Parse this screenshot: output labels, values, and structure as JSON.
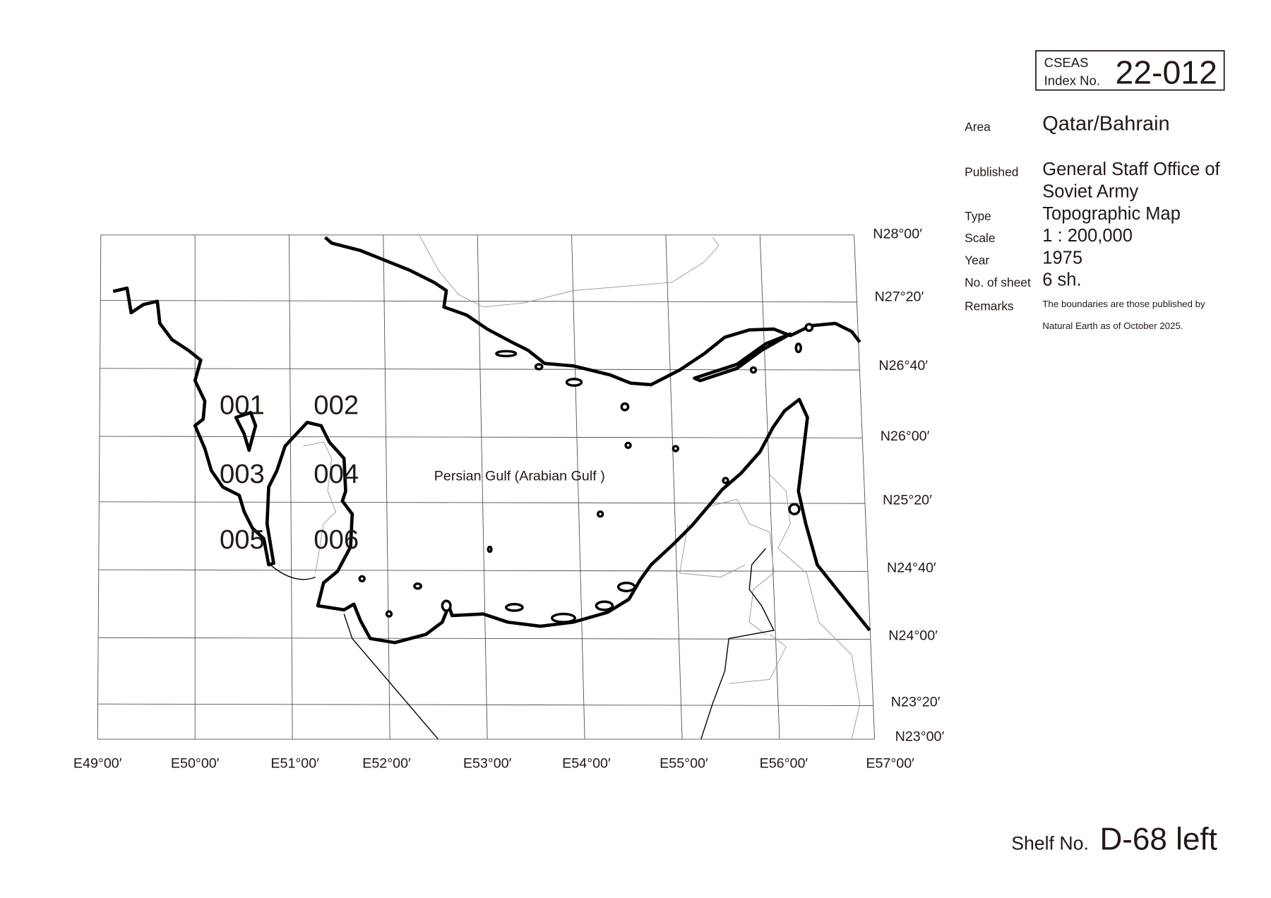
{
  "header": {
    "index_label": [
      "CSEAS",
      "Index No."
    ],
    "index_number": "22-012"
  },
  "fields": [
    {
      "label": "Area",
      "lines": [
        "Qatar/Bahrain"
      ]
    },
    {
      "label": "Published",
      "lines": [
        "General Staff Office of",
        "Soviet Army"
      ]
    },
    {
      "label": "Type",
      "lines": [
        "Topographic Map"
      ]
    },
    {
      "label": "Scale",
      "lines": [
        "1 : 200,000"
      ]
    },
    {
      "label": "Year",
      "lines": [
        "1975"
      ]
    },
    {
      "label": "No. of sheet",
      "lines": [
        "6 sh."
      ]
    },
    {
      "label": "Remarks",
      "lines": [
        "The boundaries are those published by",
        "Natural Earth as of October 2025."
      ]
    }
  ],
  "map": {
    "latitude_labels": [
      "N28°00′",
      "N27°20′",
      "N26°40′",
      "N26°00′",
      "N25°20′",
      "N24°40′",
      "N24°00′",
      "N23°20′",
      "N23°00′"
    ],
    "longitude_labels": [
      "E49°00′",
      "E50°00′",
      "E51°00′",
      "E52°00′",
      "E53°00′",
      "E54°00′",
      "E55°00′",
      "E56°00′",
      "E57°00′"
    ],
    "sheets": [
      "001",
      "002",
      "003",
      "004",
      "005",
      "006"
    ],
    "sea_label": "Persian Gulf (Arabian Gulf )"
  },
  "shelf": {
    "label": "Shelf No.",
    "number": "D-68 left"
  }
}
